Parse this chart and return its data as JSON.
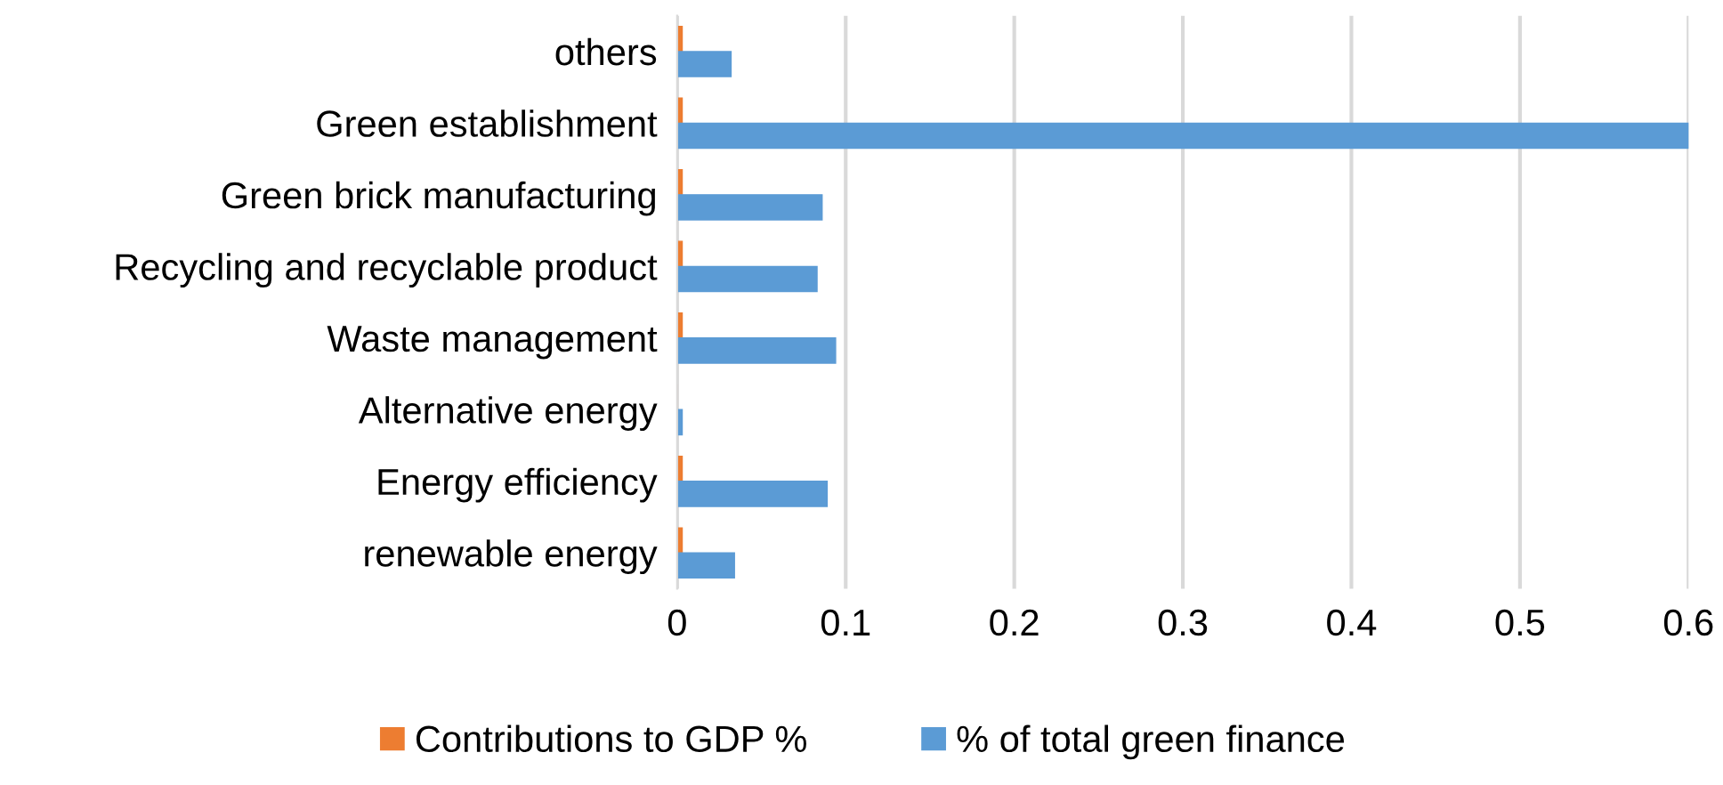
{
  "chart_data": {
    "type": "bar",
    "orientation": "horizontal",
    "categories": [
      "others",
      "Green establishment",
      "Green brick manufacturing",
      "Recycling and recyclable product",
      "Waste management",
      "Alternative energy",
      "Energy efficiency",
      "renewable energy"
    ],
    "series": [
      {
        "name": "Contributions to GDP %",
        "color": "#ed7d31",
        "values": [
          0.003,
          0.003,
          0.003,
          0.003,
          0.003,
          0,
          0.003,
          0.003
        ]
      },
      {
        "name": "% of total green finance",
        "color": "#5b9bd5",
        "values": [
          0.032,
          0.6,
          0.086,
          0.083,
          0.094,
          0.003,
          0.089,
          0.034
        ]
      }
    ],
    "xlim": [
      0,
      0.6
    ],
    "xticks": [
      0,
      0.1,
      0.2,
      0.3,
      0.4,
      0.5,
      0.6
    ],
    "grid": "x",
    "legend": "bottom"
  }
}
